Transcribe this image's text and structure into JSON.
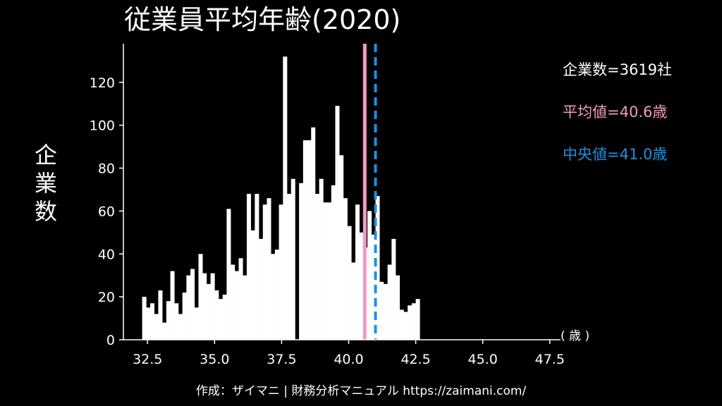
{
  "title": "従業員平均年齢(2020)",
  "footer": "作成：ザイマニ | 財務分析マニュアル https://zaimani.com/",
  "stats": {
    "count": "企業数=3619社",
    "mean": "平均値=40.6歳",
    "median": "中央値=41.0歳"
  },
  "colors": {
    "bars": "#ffffff",
    "mean": "#f49ac1",
    "median": "#1e90e0",
    "background": "#000000"
  },
  "chart_data": {
    "type": "bar",
    "title": "従業員平均年齢(2020)",
    "xlabel": "( 歳 )",
    "ylabel": "企業数",
    "xlim": [
      31.6,
      47.9
    ],
    "ylim": [
      0,
      138
    ],
    "xticks": [
      32.5,
      35.0,
      37.5,
      40.0,
      42.5,
      45.0,
      47.5
    ],
    "xtick_labels": [
      "32.5",
      "35.0",
      "37.5",
      "40.0",
      "42.5",
      "45.0",
      "47.5"
    ],
    "yticks": [
      0,
      20,
      40,
      60,
      80,
      100,
      120
    ],
    "bin_width": 0.15,
    "bin_start": 32.3,
    "values": [
      20,
      15,
      17,
      12,
      23,
      8,
      18,
      32,
      17,
      12,
      22,
      30,
      33,
      15,
      40,
      31,
      26,
      31,
      23,
      19,
      21,
      61,
      35,
      32,
      38,
      30,
      68,
      51,
      68,
      47,
      63,
      66,
      40,
      42,
      63,
      132,
      68,
      75,
      0,
      73,
      93,
      93,
      99,
      68,
      75,
      64,
      64,
      72,
      109,
      86,
      66,
      53,
      36,
      63,
      50,
      43,
      60,
      49,
      67,
      27,
      26,
      35,
      47,
      30,
      14,
      13,
      16,
      17,
      19
    ],
    "mean": 40.6,
    "median": 41.0,
    "grid": false
  }
}
